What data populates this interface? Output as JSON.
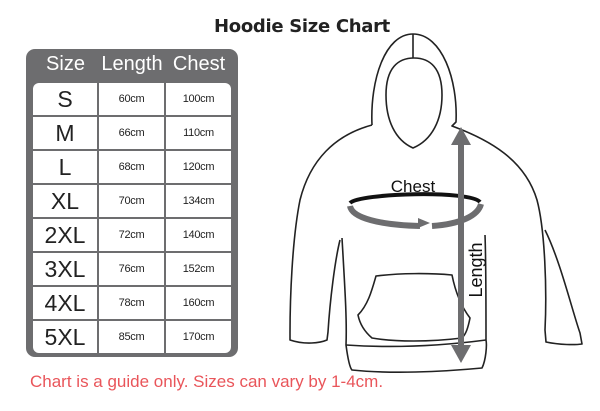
{
  "title": "Hoodie Size Chart",
  "table": {
    "headers": [
      "Size",
      "Length",
      "Chest"
    ],
    "rows": [
      [
        "S",
        "60cm",
        "100cm"
      ],
      [
        "M",
        "66cm",
        "110cm"
      ],
      [
        "L",
        "68cm",
        "120cm"
      ],
      [
        "XL",
        "70cm",
        "134cm"
      ],
      [
        "2XL",
        "72cm",
        "140cm"
      ],
      [
        "3XL",
        "76cm",
        "152cm"
      ],
      [
        "4XL",
        "78cm",
        "160cm"
      ],
      [
        "5XL",
        "85cm",
        "170cm"
      ]
    ]
  },
  "diagram": {
    "chest_label": "Chest",
    "length_label": "Length",
    "arrow_color": "#6d6d6f"
  },
  "note": "Chart is a guide only. Sizes can vary by 1-4cm.",
  "colors": {
    "table_frame": "#6d6d6f",
    "note": "#e9555a"
  }
}
